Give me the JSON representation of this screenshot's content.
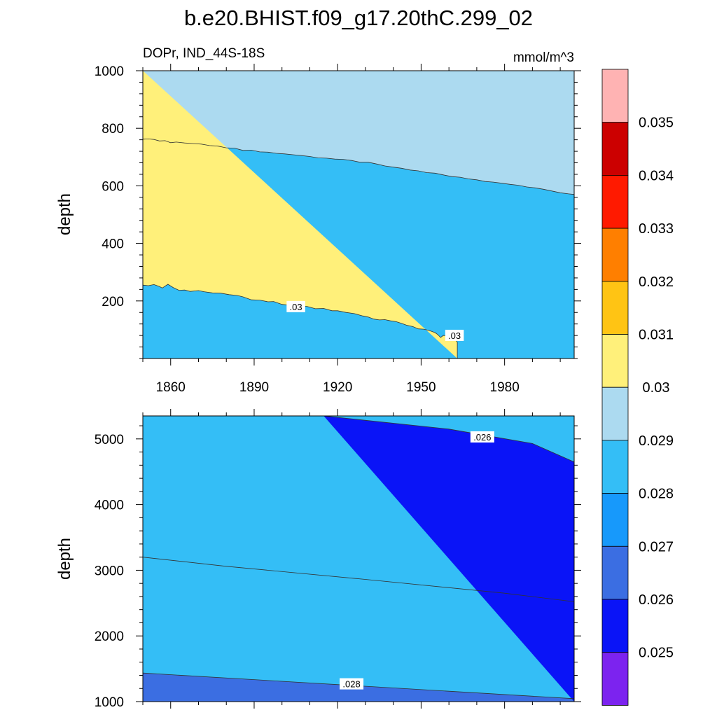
{
  "title": "b.e20.BHIST.f09_g17.20thC.299_02",
  "chart_data": {
    "type": "heatmap",
    "variable_label": "DOPr, IND_44S-18S",
    "units": "mmol/m^3",
    "colors": {
      "below_0.025": "#7c23ef",
      "0.025-0.026": "#0a14f7",
      "0.026-0.027": "#3b6ee2",
      "0.027-0.028": "#1799fb",
      "0.028-0.029": "#34bef6",
      "0.029-0.030": "#acdaf0",
      "0.030-0.031": "#fff07a",
      "0.031-0.032": "#ffc414",
      "0.032-0.033": "#ff7f00",
      "0.033-0.034": "#ff1a00",
      "0.034-0.035": "#cc0000",
      "above_0.035": "#ffb3b3",
      "contour_line": "#333333",
      "frame": "#000000"
    },
    "colorbar": {
      "levels": [
        "0.025",
        "0.026",
        "0.027",
        "0.028",
        "0.029",
        "0.03",
        "0.031",
        "0.032",
        "0.033",
        "0.034",
        "0.035"
      ]
    },
    "panels": [
      {
        "name": "upper",
        "ylabel": "depth",
        "xlim": [
          1850,
          2005
        ],
        "ylim": [
          1000,
          0
        ],
        "xticks": [
          "1860",
          "1890",
          "1920",
          "1950",
          "1980"
        ],
        "yticks": [
          "200",
          "400",
          "600",
          "800",
          "1000"
        ],
        "contours": [
          {
            "level": 0.03,
            "label": ".03",
            "points": [
              [
                1850,
                255
              ],
              [
                1852,
                253
              ],
              [
                1854,
                257
              ],
              [
                1856,
                250
              ],
              [
                1857,
                245
              ],
              [
                1859,
                258
              ],
              [
                1861,
                246
              ],
              [
                1863,
                237
              ],
              [
                1865,
                238
              ],
              [
                1867,
                233
              ],
              [
                1870,
                236
              ],
              [
                1872,
                232
              ],
              [
                1875,
                228
              ],
              [
                1878,
                227
              ],
              [
                1881,
                222
              ],
              [
                1884,
                219
              ],
              [
                1886,
                214
              ],
              [
                1889,
                204
              ],
              [
                1892,
                203
              ],
              [
                1895,
                197
              ],
              [
                1897,
                198
              ],
              [
                1900,
                188
              ],
              [
                1903,
                185
              ],
              [
                1906,
                182
              ],
              [
                1909,
                181
              ],
              [
                1912,
                173
              ],
              [
                1915,
                174
              ],
              [
                1918,
                166
              ],
              [
                1920,
                166
              ],
              [
                1923,
                160
              ],
              [
                1926,
                156
              ],
              [
                1929,
                148
              ],
              [
                1931,
                144
              ],
              [
                1933,
                137
              ],
              [
                1935,
                134
              ],
              [
                1937,
                135
              ],
              [
                1939,
                131
              ],
              [
                1941,
                128
              ],
              [
                1943,
                122
              ],
              [
                1945,
                115
              ],
              [
                1947,
                111
              ],
              [
                1949,
                103
              ],
              [
                1951,
                102
              ],
              [
                1953,
                97
              ],
              [
                1955,
                90
              ],
              [
                1956,
                83
              ],
              [
                1957,
                73
              ],
              [
                1958,
                80
              ],
              [
                1960,
                78
              ],
              [
                1962,
                69
              ],
              [
                1963,
                57
              ],
              [
                1963,
                0
              ]
            ],
            "fill_above": "#fff07a"
          },
          {
            "level": 0.029,
            "label": "",
            "points": [
              [
                1850,
                762
              ],
              [
                1852,
                763
              ],
              [
                1854,
                761
              ],
              [
                1856,
                756
              ],
              [
                1858,
                757
              ],
              [
                1860,
                750
              ],
              [
                1862,
                752
              ],
              [
                1865,
                749
              ],
              [
                1868,
                747
              ],
              [
                1871,
                745
              ],
              [
                1874,
                740
              ],
              [
                1877,
                738
              ],
              [
                1880,
                732
              ],
              [
                1883,
                731
              ],
              [
                1886,
                723
              ],
              [
                1889,
                724
              ],
              [
                1892,
                718
              ],
              [
                1895,
                717
              ],
              [
                1898,
                713
              ],
              [
                1901,
                711
              ],
              [
                1904,
                708
              ],
              [
                1907,
                705
              ],
              [
                1910,
                702
              ],
              [
                1913,
                697
              ],
              [
                1916,
                696
              ],
              [
                1919,
                693
              ],
              [
                1922,
                692
              ],
              [
                1925,
                688
              ],
              [
                1928,
                682
              ],
              [
                1931,
                682
              ],
              [
                1934,
                676
              ],
              [
                1937,
                669
              ],
              [
                1940,
                665
              ],
              [
                1943,
                661
              ],
              [
                1946,
                655
              ],
              [
                1949,
                652
              ],
              [
                1952,
                646
              ],
              [
                1955,
                644
              ],
              [
                1958,
                638
              ],
              [
                1961,
                632
              ],
              [
                1964,
                630
              ],
              [
                1967,
                624
              ],
              [
                1970,
                621
              ],
              [
                1973,
                615
              ],
              [
                1976,
                613
              ],
              [
                1979,
                609
              ],
              [
                1982,
                605
              ],
              [
                1985,
                602
              ],
              [
                1988,
                596
              ],
              [
                1991,
                593
              ],
              [
                1994,
                588
              ],
              [
                1997,
                582
              ],
              [
                2000,
                576
              ],
              [
                2003,
                572
              ],
              [
                2005,
                570
              ]
            ]
          }
        ],
        "label_positions": [
          {
            "text": ".03",
            "x": 1905,
            "y": 178
          },
          {
            "text": ".03",
            "x": 1962,
            "y": 78
          }
        ]
      },
      {
        "name": "lower",
        "ylabel": "depth",
        "xlim": [
          1850,
          2005
        ],
        "ylim": [
          5350,
          1000
        ],
        "xticks": [
          "1860",
          "1890",
          "1920",
          "1950",
          "1980"
        ],
        "yticks": [
          "1000",
          "2000",
          "3000",
          "4000",
          "5000"
        ],
        "contours": [
          {
            "level": 0.028,
            "label": ".028",
            "points": [
              [
                1850,
                1435
              ],
              [
                2005,
                1045
              ]
            ]
          },
          {
            "level": 0.027,
            "label": "",
            "points": [
              [
                1850,
                3200
              ],
              [
                1880,
                3060
              ],
              [
                1930,
                2860
              ],
              [
                1980,
                2650
              ],
              [
                2005,
                2520
              ]
            ]
          },
          {
            "level": 0.026,
            "label": ".026",
            "points": [
              [
                1915,
                5350
              ],
              [
                1960,
                5150
              ],
              [
                1990,
                4930
              ],
              [
                2005,
                4650
              ]
            ]
          }
        ],
        "label_positions": [
          {
            "text": ".028",
            "x": 1925,
            "y": 1260
          },
          {
            "text": ".026",
            "x": 1972,
            "y": 5020
          }
        ]
      }
    ]
  }
}
